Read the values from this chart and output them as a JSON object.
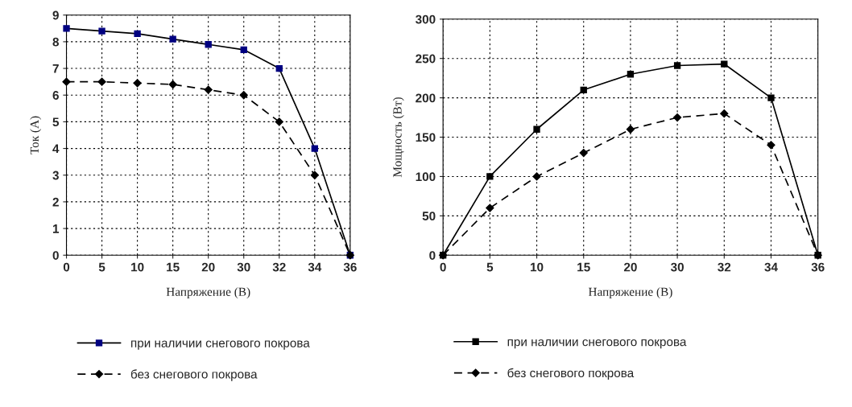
{
  "chart_data": [
    {
      "type": "line",
      "xlabel": "Напряжение (В)",
      "ylabel": "Ток (А)",
      "categories": [
        "0",
        "5",
        "10",
        "15",
        "20",
        "30",
        "32",
        "34",
        "36"
      ],
      "ylim": [
        0,
        9
      ],
      "yticks": [
        0,
        1,
        2,
        3,
        4,
        5,
        6,
        7,
        8,
        9
      ],
      "grid": true,
      "legend": "bottom",
      "series": [
        {
          "name": "при наличии снегового покрова",
          "color": "#000080",
          "marker": "square",
          "line_style": "solid",
          "values": [
            8.5,
            8.4,
            8.3,
            8.1,
            7.9,
            7.7,
            7.0,
            4.0,
            0
          ]
        },
        {
          "name": "без снегового покрова",
          "color": "#000000",
          "marker": "diamond",
          "line_style": "dashed",
          "values": [
            6.5,
            6.5,
            6.45,
            6.4,
            6.2,
            6.0,
            5.0,
            3.0,
            0
          ]
        }
      ]
    },
    {
      "type": "line",
      "xlabel": "Напряжение (В)",
      "ylabel": "Мощность (Вт)",
      "categories": [
        "0",
        "5",
        "10",
        "15",
        "20",
        "30",
        "32",
        "34",
        "36"
      ],
      "ylim": [
        0,
        300
      ],
      "yticks": [
        0,
        50,
        100,
        150,
        200,
        250,
        300
      ],
      "grid": true,
      "legend": "bottom",
      "series": [
        {
          "name": "при наличии снегового покрова",
          "color": "#000000",
          "marker": "square",
          "line_style": "solid",
          "values": [
            0,
            100,
            160,
            210,
            230,
            241,
            243,
            200,
            0
          ]
        },
        {
          "name": "без снегового покрова",
          "color": "#000000",
          "marker": "diamond",
          "line_style": "dashed",
          "values": [
            0,
            60,
            100,
            130,
            160,
            175,
            180,
            140,
            0
          ]
        }
      ]
    }
  ]
}
